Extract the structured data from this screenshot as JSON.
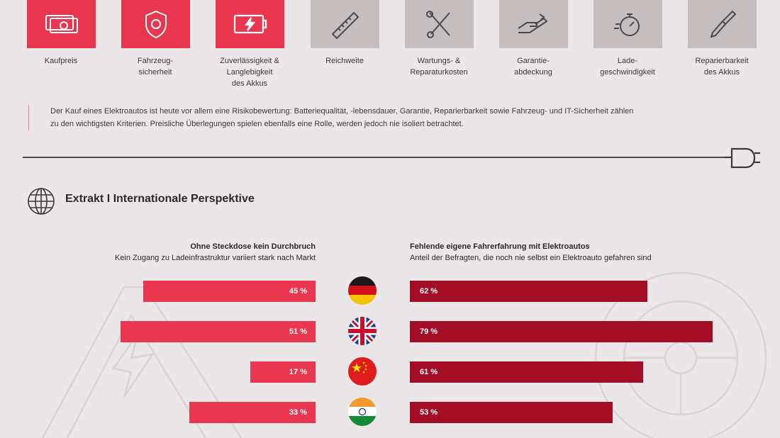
{
  "colors": {
    "accent_red": "#e8374e",
    "dark_red": "#a30d25",
    "tile_grey": "#c4bebf",
    "background": "#ebe6e7"
  },
  "criteria": [
    {
      "label": "Kaufpreis",
      "icon": "money-icon",
      "highlighted": true
    },
    {
      "label": "Fahrzeug-\nsicherheit",
      "icon": "shield-icon",
      "highlighted": true
    },
    {
      "label": "Zuverlässigkeit &\nLanglebigkeit\ndes Akkus",
      "icon": "battery-icon",
      "highlighted": true
    },
    {
      "label": "Reichweite",
      "icon": "ruler-icon",
      "highlighted": false
    },
    {
      "label": "Wartungs- &\nReparaturkosten",
      "icon": "tools-icon",
      "highlighted": false
    },
    {
      "label": "Garantie-\nabdeckung",
      "icon": "hand-icon",
      "highlighted": false
    },
    {
      "label": "Lade-\ngeschwindigkeit",
      "icon": "stopwatch-icon",
      "highlighted": false
    },
    {
      "label": "Reparierbarkeit\ndes Akkus",
      "icon": "screwdriver-icon",
      "highlighted": false
    }
  ],
  "note_line1": "Der Kauf eines Elektroautos ist heute vor allem eine Risikobewertung: Batteriequalität, -lebensdauer, Garantie, Reparierbarkeit sowie Fahrzeug- und IT-Sicherheit zählen",
  "note_line2": "zu den wichtigsten Kriterien. Preisliche Überlegungen spielen ebenfalls eine Rolle, werden jedoch nie isoliert betrachtet.",
  "section_title": "Extrakt I Internationale Perspektive",
  "chart_data": [
    {
      "type": "bar",
      "title": "Ohne Steckdose kein Durchbruch",
      "subtitle": "Kein Zugang zu Ladeinfrastruktur variiert stark nach Markt",
      "categories": [
        "Deutschland",
        "Vereinigtes Königreich",
        "China",
        "Indien"
      ],
      "values": [
        45,
        51,
        17,
        33
      ],
      "labels": [
        "45 %",
        "51 %",
        "17 %",
        "33 %"
      ],
      "orientation": "horizontal-right-to-left"
    },
    {
      "type": "bar",
      "title": "Fehlende eigene Fahrerfahrung mit Elektroautos",
      "subtitle": "Anteil der Befragten, die noch nie selbst ein Elektroauto gefahren sind",
      "categories": [
        "Deutschland",
        "Vereinigtes Königreich",
        "China",
        "Indien"
      ],
      "values": [
        62,
        79,
        61,
        53
      ],
      "labels": [
        "62 %",
        "79 %",
        "61 %",
        "53 %"
      ],
      "orientation": "horizontal-left-to-right"
    }
  ],
  "flags": [
    "flag-germany-icon",
    "flag-uk-icon",
    "flag-china-icon",
    "flag-india-icon"
  ]
}
